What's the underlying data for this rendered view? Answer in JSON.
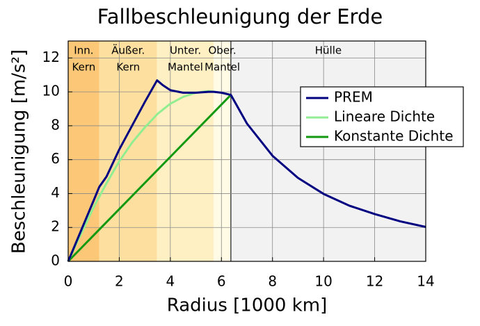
{
  "chart_data": {
    "type": "line",
    "title": "Fallbeschleunigung der Erde",
    "x_label": "Radius [1000 km]",
    "y_label": "Beschleunigung [m/s²]",
    "xlim": [
      0,
      14
    ],
    "ylim": [
      0,
      13
    ],
    "xticks": [
      0,
      2,
      4,
      6,
      8,
      10,
      12,
      14
    ],
    "yticks": [
      0,
      2,
      4,
      6,
      8,
      10,
      12
    ],
    "grid": true,
    "legend": "upper right",
    "regions": [
      {
        "label": [
          "Inn.",
          "Kern"
        ],
        "from": 0,
        "to": 1.22,
        "color": "#fcc877"
      },
      {
        "label": [
          "Äußer.",
          "Kern"
        ],
        "from": 1.22,
        "to": 3.48,
        "color": "#fde0a0"
      },
      {
        "label": [
          "Unter.",
          "Mantel"
        ],
        "from": 3.48,
        "to": 5.7,
        "color": "#fff0c4"
      },
      {
        "label": [
          "Ober.",
          "Mantel"
        ],
        "from": 5.7,
        "to": 6.37,
        "color": "#fffbe4"
      },
      {
        "label": [
          "Hülle"
        ],
        "from": 6.37,
        "to": 14,
        "color": "#f2f2f2"
      }
    ],
    "series": [
      {
        "name": "PREM",
        "color": "#000080",
        "x": [
          0,
          0.5,
          1,
          1.22,
          1.5,
          2,
          2.5,
          3,
          3.48,
          3.7,
          4,
          4.5,
          5,
          5.5,
          5.7,
          6,
          6.37,
          7,
          8,
          9,
          10,
          11,
          12,
          13,
          14
        ],
        "values": [
          0,
          1.8,
          3.6,
          4.4,
          5.0,
          6.6,
          8.0,
          9.4,
          10.68,
          10.4,
          10.1,
          9.95,
          9.95,
          10.0,
          10.0,
          9.95,
          9.82,
          8.13,
          6.23,
          4.92,
          3.98,
          3.29,
          2.79,
          2.36,
          2.03
        ]
      },
      {
        "name": "Lineare Dichte",
        "color": "#90ee90",
        "x": [
          0,
          0.5,
          1,
          1.5,
          2,
          2.5,
          3,
          3.5,
          4,
          4.5,
          5,
          5.5,
          6,
          6.37
        ],
        "values": [
          0,
          1.6,
          3.2,
          4.6,
          5.9,
          7.0,
          7.9,
          8.7,
          9.3,
          9.7,
          9.95,
          10.05,
          9.95,
          9.82
        ]
      },
      {
        "name": "Konstante Dichte",
        "color": "#119911",
        "x": [
          0,
          6.37
        ],
        "values": [
          0,
          9.82
        ]
      }
    ]
  }
}
